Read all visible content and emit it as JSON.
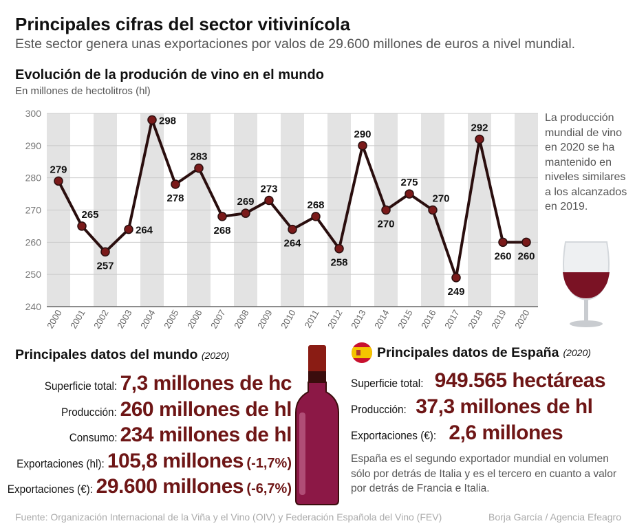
{
  "header": {
    "title": "Principales cifras del sector vitivinícola",
    "subtitle": "Este sector genera unas exportaciones por valos de 29.600 millones de euros a nivel mundial."
  },
  "chart_data": {
    "type": "line",
    "title": "Evolución de la produción de vino en el mundo",
    "ylabel": "En millones de hectolitros (hl)",
    "xlabel": "",
    "x": [
      "2000",
      "2001",
      "2002",
      "2003",
      "2004",
      "2005",
      "2006",
      "2007",
      "2008",
      "2009",
      "2010",
      "2011",
      "2012",
      "2013",
      "2014",
      "2015",
      "2016",
      "2017",
      "2018",
      "2019",
      "2020"
    ],
    "values": [
      279,
      265,
      257,
      264,
      298,
      278,
      283,
      268,
      269,
      273,
      264,
      268,
      258,
      290,
      270,
      275,
      270,
      249,
      292,
      260,
      260
    ],
    "label_position": [
      "above",
      "above",
      "below",
      "right",
      "right",
      "below",
      "above",
      "below",
      "above",
      "above",
      "below",
      "above",
      "below",
      "above",
      "below",
      "above",
      "above",
      "below",
      "above",
      "below",
      "below"
    ],
    "ylim": [
      240,
      300
    ],
    "yticks": [
      "240",
      "250",
      "260",
      "270",
      "280",
      "290",
      "300"
    ],
    "grid": true,
    "line_color": "#2a0e0e",
    "marker_color": "#7a1a1a",
    "band_color": "#e3e3e3"
  },
  "note": "La producción mundial de vino en 2020 se ha mantenido en niveles similares a los alcanzados en 2019.",
  "world": {
    "title": "Principales datos del mundo",
    "year": "(2020)",
    "rows": [
      {
        "label": "Superficie total:",
        "value": "7,3 millones de hc",
        "extra": ""
      },
      {
        "label": "Producción:",
        "value": "260 millones de hl",
        "extra": ""
      },
      {
        "label": "Consumo:",
        "value": "234 millones de hl",
        "extra": ""
      },
      {
        "label": "Exportaciones (hl):",
        "value": "105,8 millones",
        "extra": "(-1,7%)"
      },
      {
        "label": "Exportaciones (€):",
        "value": "29.600 millones",
        "extra": "(-6,7%)"
      }
    ]
  },
  "spain": {
    "title": "Principales datos de España",
    "year": "(2020)",
    "rows": [
      {
        "label": "Superficie total:",
        "value": "949.565 hectáreas"
      },
      {
        "label": "Producción:",
        "value": "37,3 millones de hl"
      },
      {
        "label": "Exportaciones (€):",
        "value": "2,6 millones"
      }
    ],
    "note": "España es el segundo exportador mundial en volumen sólo por detrás de Italia y es el tercero en cuanto a valor por detrás de Francia e Italia."
  },
  "footer": {
    "source": "Fuente: Organización Internacional de la Viña y el Vino (OIV) y Federación Española del Vino (FEV)",
    "credit": "Borja García / Agencia Efeagro"
  }
}
